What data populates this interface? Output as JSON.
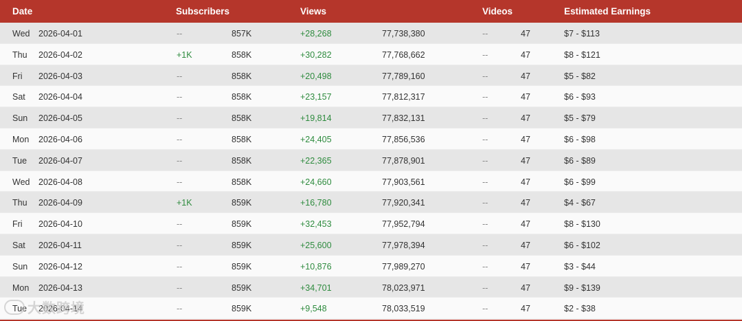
{
  "header": {
    "date": "Date",
    "subscribers": "Subscribers",
    "views": "Views",
    "videos": "Videos",
    "earnings": "Estimated Earnings"
  },
  "rows": [
    {
      "day": "Wed",
      "date": "2026-04-01",
      "sub_change": "--",
      "subs": "857K",
      "view_change": "+28,268",
      "views": "77,738,380",
      "video_change": "--",
      "videos": "47",
      "earnings": "$7 - $113"
    },
    {
      "day": "Thu",
      "date": "2026-04-02",
      "sub_change": "+1K",
      "subs": "858K",
      "view_change": "+30,282",
      "views": "77,768,662",
      "video_change": "--",
      "videos": "47",
      "earnings": "$8 - $121"
    },
    {
      "day": "Fri",
      "date": "2026-04-03",
      "sub_change": "--",
      "subs": "858K",
      "view_change": "+20,498",
      "views": "77,789,160",
      "video_change": "--",
      "videos": "47",
      "earnings": "$5 - $82"
    },
    {
      "day": "Sat",
      "date": "2026-04-04",
      "sub_change": "--",
      "subs": "858K",
      "view_change": "+23,157",
      "views": "77,812,317",
      "video_change": "--",
      "videos": "47",
      "earnings": "$6 - $93"
    },
    {
      "day": "Sun",
      "date": "2026-04-05",
      "sub_change": "--",
      "subs": "858K",
      "view_change": "+19,814",
      "views": "77,832,131",
      "video_change": "--",
      "videos": "47",
      "earnings": "$5 - $79"
    },
    {
      "day": "Mon",
      "date": "2026-04-06",
      "sub_change": "--",
      "subs": "858K",
      "view_change": "+24,405",
      "views": "77,856,536",
      "video_change": "--",
      "videos": "47",
      "earnings": "$6 - $98"
    },
    {
      "day": "Tue",
      "date": "2026-04-07",
      "sub_change": "--",
      "subs": "858K",
      "view_change": "+22,365",
      "views": "77,878,901",
      "video_change": "--",
      "videos": "47",
      "earnings": "$6 - $89"
    },
    {
      "day": "Wed",
      "date": "2026-04-08",
      "sub_change": "--",
      "subs": "858K",
      "view_change": "+24,660",
      "views": "77,903,561",
      "video_change": "--",
      "videos": "47",
      "earnings": "$6 - $99"
    },
    {
      "day": "Thu",
      "date": "2026-04-09",
      "sub_change": "+1K",
      "subs": "859K",
      "view_change": "+16,780",
      "views": "77,920,341",
      "video_change": "--",
      "videos": "47",
      "earnings": "$4 - $67"
    },
    {
      "day": "Fri",
      "date": "2026-04-10",
      "sub_change": "--",
      "subs": "859K",
      "view_change": "+32,453",
      "views": "77,952,794",
      "video_change": "--",
      "videos": "47",
      "earnings": "$8 - $130"
    },
    {
      "day": "Sat",
      "date": "2026-04-11",
      "sub_change": "--",
      "subs": "859K",
      "view_change": "+25,600",
      "views": "77,978,394",
      "video_change": "--",
      "videos": "47",
      "earnings": "$6 - $102"
    },
    {
      "day": "Sun",
      "date": "2026-04-12",
      "sub_change": "--",
      "subs": "859K",
      "view_change": "+10,876",
      "views": "77,989,270",
      "video_change": "--",
      "videos": "47",
      "earnings": "$3 - $44"
    },
    {
      "day": "Mon",
      "date": "2026-04-13",
      "sub_change": "--",
      "subs": "859K",
      "view_change": "+34,701",
      "views": "78,023,971",
      "video_change": "--",
      "videos": "47",
      "earnings": "$9 - $139"
    },
    {
      "day": "Tue",
      "date": "2026-04-14",
      "sub_change": "--",
      "subs": "859K",
      "view_change": "+9,548",
      "views": "78,033,519",
      "video_change": "--",
      "videos": "47",
      "earnings": "$2 - $38"
    }
  ],
  "watermark": {
    "text": "大数跨境"
  },
  "colors": {
    "header_bg": "#b5362b",
    "positive": "#2e8b3e"
  }
}
